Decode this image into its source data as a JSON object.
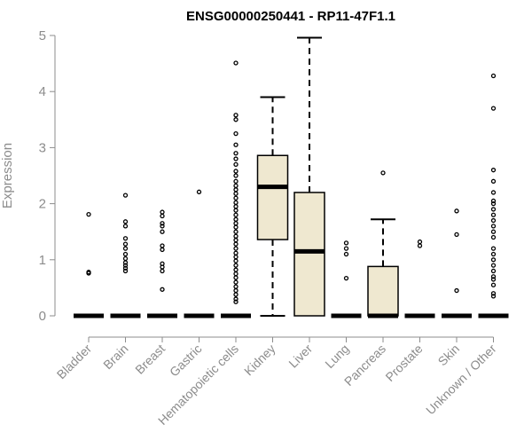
{
  "chart_data": {
    "type": "boxplot",
    "title": "ENSG00000250441 - RP11-47F1.1",
    "xlabel": "",
    "ylabel": "Expression",
    "ylim": [
      0,
      5
    ],
    "yticks": [
      0,
      1,
      2,
      3,
      4,
      5
    ],
    "grid": false,
    "colors": {
      "box_fill": "#efe8d0",
      "stroke": "#000000",
      "axis": "#8c8c8c"
    },
    "categories": [
      "Bladder",
      "Brain",
      "Breast",
      "Gastric",
      "Hematopoietic cells",
      "Kidney",
      "Liver",
      "Lung",
      "Pancreas",
      "Prostate",
      "Skin",
      "Unknown / Other"
    ],
    "boxes": [
      {
        "name": "Bladder",
        "q1": 0,
        "median": 0,
        "q3": 0,
        "whisker_low": 0,
        "whisker_high": 0,
        "outliers": [
          0.78,
          0.76,
          1.81
        ]
      },
      {
        "name": "Brain",
        "q1": 0,
        "median": 0,
        "q3": 0,
        "whisker_low": 0,
        "whisker_high": 0,
        "outliers": [
          0.8,
          0.85,
          0.9,
          0.95,
          1.02,
          1.1,
          1.2,
          1.28,
          1.38,
          1.6,
          1.68,
          2.15
        ]
      },
      {
        "name": "Breast",
        "q1": 0,
        "median": 0,
        "q3": 0,
        "whisker_low": 0,
        "whisker_high": 0,
        "outliers": [
          0.47,
          0.8,
          0.87,
          0.93,
          1.18,
          1.25,
          1.5,
          1.6,
          1.65,
          1.78,
          1.85
        ]
      },
      {
        "name": "Gastric",
        "q1": 0,
        "median": 0,
        "q3": 0,
        "whisker_low": 0,
        "whisker_high": 0,
        "outliers": [
          2.21
        ]
      },
      {
        "name": "Hematopoietic cells",
        "q1": 0,
        "median": 0,
        "q3": 0,
        "whisker_low": 0,
        "whisker_high": 0,
        "outliers": [
          0.25,
          0.3,
          0.38,
          0.45,
          0.52,
          0.6,
          0.68,
          0.75,
          0.82,
          0.9,
          0.98,
          1.05,
          1.12,
          1.2,
          1.28,
          1.35,
          1.42,
          1.5,
          1.58,
          1.65,
          1.72,
          1.8,
          1.88,
          1.95,
          2.02,
          2.1,
          2.18,
          2.25,
          2.32,
          2.4,
          2.5,
          2.58,
          2.7,
          2.8,
          2.9,
          3.05,
          3.25,
          3.5,
          3.58,
          4.51
        ]
      },
      {
        "name": "Kidney",
        "q1": 1.36,
        "median": 2.3,
        "q3": 2.86,
        "whisker_low": 0,
        "whisker_high": 3.9,
        "outliers": []
      },
      {
        "name": "Liver",
        "q1": 0,
        "median": 1.15,
        "q3": 2.2,
        "whisker_low": 0,
        "whisker_high": 4.96,
        "outliers": []
      },
      {
        "name": "Lung",
        "q1": 0,
        "median": 0,
        "q3": 0,
        "whisker_low": 0,
        "whisker_high": 0,
        "outliers": [
          0.67,
          1.1,
          1.2,
          1.3
        ]
      },
      {
        "name": "Pancreas",
        "q1": 0,
        "median": 0,
        "q3": 0.88,
        "whisker_low": 0,
        "whisker_high": 1.72,
        "outliers": [
          2.55
        ]
      },
      {
        "name": "Prostate",
        "q1": 0,
        "median": 0,
        "q3": 0,
        "whisker_low": 0,
        "whisker_high": 0,
        "outliers": [
          1.25,
          1.32
        ]
      },
      {
        "name": "Skin",
        "q1": 0,
        "median": 0,
        "q3": 0,
        "whisker_low": 0,
        "whisker_high": 0,
        "outliers": [
          0.45,
          1.45,
          1.87
        ]
      },
      {
        "name": "Unknown / Other",
        "q1": 0,
        "median": 0,
        "q3": 0,
        "whisker_low": 0,
        "whisker_high": 0,
        "outliers": [
          0.35,
          0.4,
          0.55,
          0.65,
          0.7,
          0.8,
          0.9,
          1.0,
          1.1,
          1.2,
          1.4,
          1.5,
          1.6,
          1.7,
          1.8,
          1.9,
          2.0,
          2.05,
          2.2,
          2.4,
          2.6,
          3.7,
          4.28
        ]
      }
    ]
  }
}
